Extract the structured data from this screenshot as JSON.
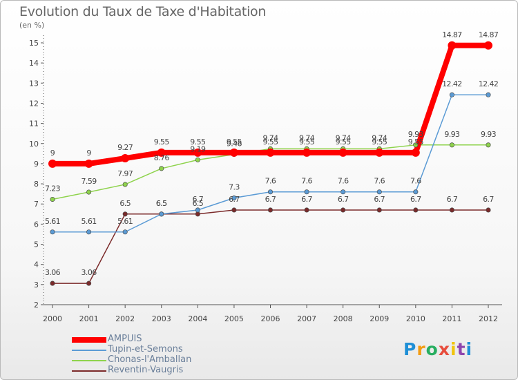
{
  "chart_data": {
    "type": "line",
    "title": "Evolution du Taux de Taxe d'Habitation",
    "subtitle": "(en %)",
    "x": [
      "2000",
      "2001",
      "2002",
      "2003",
      "2004",
      "2005",
      "2006",
      "2007",
      "2008",
      "2009",
      "2010",
      "2011",
      "2012"
    ],
    "ylim": [
      2,
      15
    ],
    "yticks": [
      2,
      3,
      4,
      5,
      6,
      7,
      8,
      9,
      10,
      11,
      12,
      13,
      14,
      15
    ],
    "grid": false,
    "legend_position": "bottom-left",
    "series": [
      {
        "name": "AMPUIS",
        "color": "#ff0000",
        "values": [
          9,
          9,
          9.27,
          9.55,
          9.55,
          9.55,
          9.55,
          9.55,
          9.55,
          9.55,
          9.55,
          14.87,
          14.87
        ],
        "labels": [
          "9",
          "9",
          "9.27",
          "9.55",
          "9.55",
          "9.55",
          "9.55",
          "9.55",
          "9.55",
          "9.55",
          "9.55",
          "14.87",
          "14.87"
        ]
      },
      {
        "name": "Tupin-et-Semons",
        "color": "#5b9bd5",
        "values": [
          5.61,
          5.61,
          5.61,
          6.5,
          6.7,
          7.3,
          7.6,
          7.6,
          7.6,
          7.6,
          7.6,
          12.42,
          12.42
        ],
        "labels": [
          "5.61",
          "5.61",
          "5.61",
          "6.5",
          "6.7",
          "7.3",
          "7.6",
          "7.6",
          "7.6",
          "7.6",
          "7.6",
          "12.42",
          "12.42"
        ]
      },
      {
        "name": "Chonas-l'Amballan",
        "color": "#8ed34c",
        "values": [
          7.23,
          7.59,
          7.97,
          8.76,
          9.19,
          9.46,
          9.74,
          9.74,
          9.74,
          9.74,
          9.93,
          9.93,
          9.93
        ],
        "labels": [
          "7.23",
          "7.59",
          "7.97",
          "8.76",
          "9.19",
          "9.46",
          "9.74",
          "9.74",
          "9.74",
          "9.74",
          "9.93",
          "9.93",
          "9.93"
        ]
      },
      {
        "name": "Reventin-Vaugris",
        "color": "#7b2a2a",
        "values": [
          3.06,
          3.06,
          6.5,
          6.5,
          6.5,
          6.7,
          6.7,
          6.7,
          6.7,
          6.7,
          6.7,
          6.7,
          6.7
        ],
        "labels": [
          "3.06",
          "3.06",
          "6.5",
          "6.5",
          "6.5",
          "6.7",
          "6.7",
          "6.7",
          "6.7",
          "6.7",
          "6.7",
          "6.7",
          "6.7"
        ]
      }
    ]
  },
  "brand": {
    "letters": [
      "P",
      "r",
      "o",
      "x",
      "i",
      "t",
      "i"
    ],
    "colors": [
      "#1f8fd6",
      "#f39c12",
      "#27ae60",
      "#e74c3c",
      "#f1c40f",
      "#8e44ad",
      "#1f8fd6"
    ]
  }
}
